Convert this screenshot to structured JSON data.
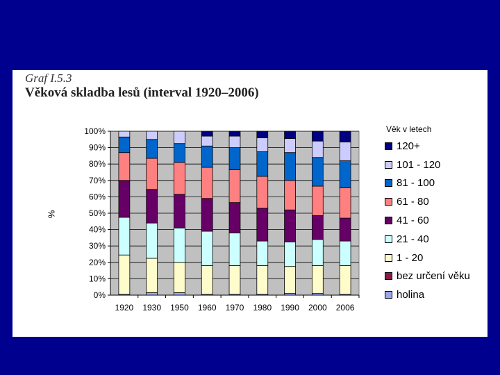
{
  "header": {
    "label": "Graf I.5.3",
    "title": "Věková skladba lesů (interval 1920–2006)"
  },
  "chart_data": {
    "type": "bar",
    "stacked": "percent",
    "ylabel": "%",
    "xlabel": "",
    "ylim": [
      0,
      100
    ],
    "yticks": [
      "0%",
      "10%",
      "20%",
      "30%",
      "40%",
      "50%",
      "60%",
      "70%",
      "80%",
      "90%",
      "100%"
    ],
    "legend_title": "Věk v letech",
    "legend_position": "right",
    "categories": [
      "1920",
      "1930",
      "1950",
      "1960",
      "1970",
      "1980",
      "1990",
      "2000",
      "2006"
    ],
    "series": [
      {
        "name": "holina",
        "color": "#9aa6f0",
        "values": [
          0.5,
          1.5,
          1.5,
          0.5,
          0.5,
          0.5,
          1,
          1,
          0.5
        ]
      },
      {
        "name": "bez určení věku",
        "color": "#8b1a4a",
        "values": [
          0,
          0,
          0,
          0,
          0,
          0,
          0,
          0,
          0
        ]
      },
      {
        "name": "1 - 20",
        "color": "#fffccc",
        "values": [
          24,
          21,
          18.5,
          17.5,
          17.5,
          17.5,
          16.5,
          17,
          17.5
        ]
      },
      {
        "name": "21 - 40",
        "color": "#ccffff",
        "values": [
          23,
          21.5,
          21,
          21,
          20,
          15,
          15,
          16,
          15
        ]
      },
      {
        "name": "41 - 60",
        "color": "#660066",
        "values": [
          22.5,
          20.5,
          20.5,
          20,
          18.5,
          20,
          19.5,
          14.5,
          14
        ]
      },
      {
        "name": "61 - 80",
        "color": "#ff8080",
        "values": [
          17,
          19,
          19.5,
          19,
          20,
          19.5,
          18,
          18,
          18.5
        ]
      },
      {
        "name": "81 - 100",
        "color": "#0066cc",
        "values": [
          9.5,
          11.5,
          11.5,
          13,
          13.5,
          15,
          17,
          17.5,
          16.5
        ]
      },
      {
        "name": "101 - 120",
        "color": "#ccccff",
        "values": [
          3.5,
          5,
          7.5,
          6,
          7,
          8.5,
          8.5,
          10,
          11.5
        ]
      },
      {
        "name": "120+",
        "color": "#000080",
        "values": [
          0,
          0,
          0,
          3,
          3,
          4,
          4.5,
          6,
          6.5
        ]
      }
    ]
  }
}
